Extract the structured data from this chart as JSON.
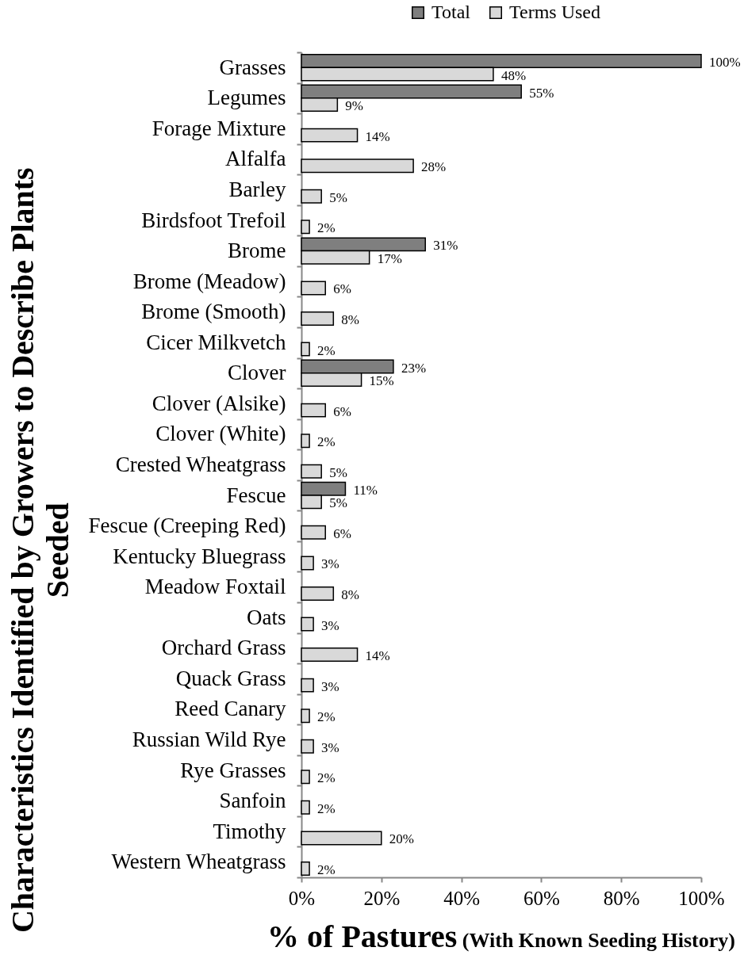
{
  "chart_data": {
    "type": "bar",
    "orientation": "horizontal",
    "xlabel": "% of Pastures (With Known Seeding History)",
    "ylabel": "Characteristics Identified by Growers to Describe Plants Seeded",
    "categories": [
      "Grasses",
      "Legumes",
      "Forage Mixture",
      "Alfalfa",
      "Barley",
      "Birdsfoot Trefoil",
      "Brome",
      "Brome (Meadow)",
      "Brome (Smooth)",
      "Cicer Milkvetch",
      "Clover",
      "Clover (Alsike)",
      "Clover (White)",
      "Crested Wheatgrass",
      "Fescue",
      "Fescue (Creeping Red)",
      "Kentucky Bluegrass",
      "Meadow Foxtail",
      "Oats",
      "Orchard Grass",
      "Quack Grass",
      "Reed Canary",
      "Russian Wild Rye",
      "Rye Grasses",
      "Sanfoin",
      "Timothy",
      "Western Wheatgrass"
    ],
    "series": [
      {
        "name": "Total",
        "color": "#7f7f7f",
        "values": [
          100,
          55,
          null,
          null,
          null,
          null,
          31,
          null,
          null,
          null,
          23,
          null,
          null,
          null,
          11,
          null,
          null,
          null,
          null,
          null,
          null,
          null,
          null,
          null,
          null,
          null,
          null
        ],
        "value_labels": [
          "100%",
          "55%",
          null,
          null,
          null,
          null,
          "31%",
          null,
          null,
          null,
          "23%",
          null,
          null,
          null,
          "11%",
          null,
          null,
          null,
          null,
          null,
          null,
          null,
          null,
          null,
          null,
          null,
          null
        ]
      },
      {
        "name": "Terms Used",
        "color": "#d9d9d9",
        "values": [
          48,
          9,
          14,
          28,
          5,
          2,
          17,
          6,
          8,
          2,
          15,
          6,
          2,
          5,
          5,
          6,
          3,
          8,
          3,
          14,
          3,
          2,
          3,
          2,
          2,
          20,
          2
        ],
        "value_labels": [
          "48%",
          "9%",
          "14%",
          "28%",
          "5%",
          "2%",
          "17%",
          "6%",
          "8%",
          "2%",
          "15%",
          "6%",
          "2%",
          "5%",
          "5%",
          "6%",
          "3%",
          "8%",
          "3%",
          "14%",
          "3%",
          "2%",
          "3%",
          "2%",
          "2%",
          "20%",
          "2%"
        ]
      }
    ],
    "xlim": [
      0,
      100
    ],
    "xticks": [
      {
        "value": 0,
        "label": "0%"
      },
      {
        "value": 20,
        "label": "20%"
      },
      {
        "value": 40,
        "label": "40%"
      },
      {
        "value": 60,
        "label": "60%"
      },
      {
        "value": 80,
        "label": "80%"
      },
      {
        "value": 100,
        "label": "100%"
      }
    ],
    "legend": "top"
  }
}
